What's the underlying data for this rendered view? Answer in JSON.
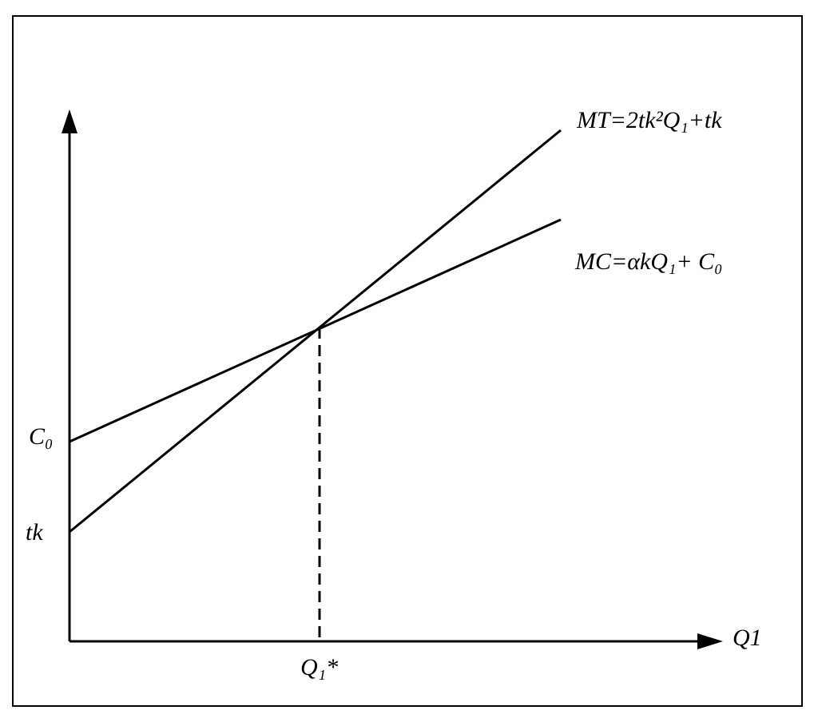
{
  "curves": {
    "mt": {
      "label": "MT=2tk²Q₁+tk"
    },
    "mc": {
      "label": "MC=αkQ₁+ C₀"
    }
  },
  "axes": {
    "x_label": "Q1"
  },
  "intercepts": {
    "c0": "C₀",
    "tk": "tk"
  },
  "equilibrium": {
    "label": "Q₁*"
  }
}
